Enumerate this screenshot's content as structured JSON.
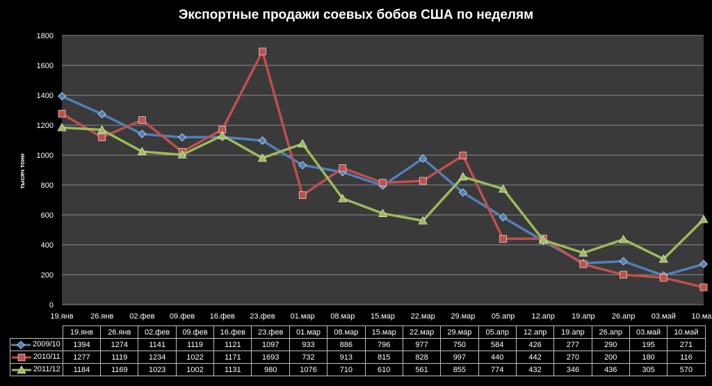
{
  "chart_data": {
    "type": "line",
    "title": "Экспортные продажи соевых бобов США по неделям",
    "ylabel": "тысяч тонн",
    "xlabel": "",
    "ylim": [
      0,
      1800
    ],
    "yticks": [
      0,
      200,
      400,
      600,
      800,
      1000,
      1200,
      1400,
      1600,
      1800
    ],
    "grid": true,
    "legend": "data-table",
    "categories": [
      "19.янв",
      "26.янв",
      "02.фев",
      "09.фев",
      "16.фев",
      "23.фев",
      "01.мар",
      "08.мар",
      "15.мар",
      "22.мар",
      "29.мар",
      "05.апр",
      "12.апр",
      "19.апр",
      "26.апр",
      "03.май",
      "10.май"
    ],
    "series": [
      {
        "name": "2009/10",
        "color": "#4f81bd",
        "marker": "diamond",
        "values": [
          1394,
          1274,
          1141,
          1119,
          1121,
          1097,
          933,
          886,
          796,
          977,
          750,
          584,
          426,
          277,
          290,
          195,
          271
        ]
      },
      {
        "name": "2010/11",
        "color": "#c0504d",
        "marker": "square",
        "values": [
          1277,
          1119,
          1234,
          1022,
          1171,
          1693,
          732,
          913,
          815,
          828,
          997,
          440,
          442,
          270,
          200,
          180,
          116
        ]
      },
      {
        "name": "2011/12",
        "color": "#9bbb59",
        "marker": "triangle",
        "values": [
          1184,
          1169,
          1023,
          1002,
          1131,
          980,
          1076,
          710,
          610,
          561,
          855,
          774,
          432,
          346,
          436,
          305,
          570
        ]
      }
    ]
  }
}
